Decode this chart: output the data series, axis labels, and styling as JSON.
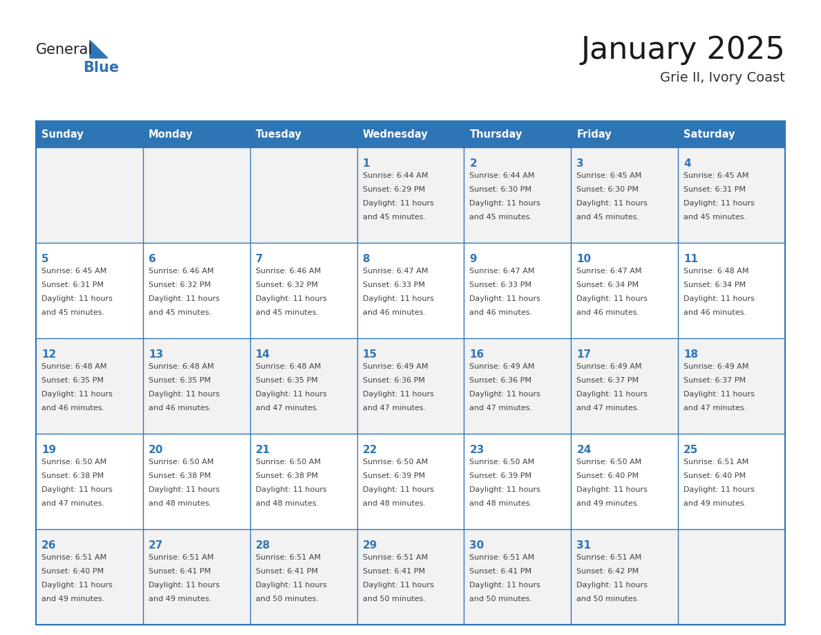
{
  "title": "January 2025",
  "subtitle": "Grie II, Ivory Coast",
  "header_bg": "#2E75B6",
  "header_text_color": "#FFFFFF",
  "cell_bg_even": "#F2F2F2",
  "cell_bg_odd": "#FFFFFF",
  "cell_text_color": "#404040",
  "day_num_color": "#2E75B6",
  "grid_line_color": "#2E75B6",
  "days_of_week": [
    "Sunday",
    "Monday",
    "Tuesday",
    "Wednesday",
    "Thursday",
    "Friday",
    "Saturday"
  ],
  "weeks": [
    [
      {
        "day": "",
        "sunrise": "",
        "sunset": "",
        "daylight": ""
      },
      {
        "day": "",
        "sunrise": "",
        "sunset": "",
        "daylight": ""
      },
      {
        "day": "",
        "sunrise": "",
        "sunset": "",
        "daylight": ""
      },
      {
        "day": "1",
        "sunrise": "Sunrise: 6:44 AM",
        "sunset": "Sunset: 6:29 PM",
        "daylight": "Daylight: 11 hours\nand 45 minutes."
      },
      {
        "day": "2",
        "sunrise": "Sunrise: 6:44 AM",
        "sunset": "Sunset: 6:30 PM",
        "daylight": "Daylight: 11 hours\nand 45 minutes."
      },
      {
        "day": "3",
        "sunrise": "Sunrise: 6:45 AM",
        "sunset": "Sunset: 6:30 PM",
        "daylight": "Daylight: 11 hours\nand 45 minutes."
      },
      {
        "day": "4",
        "sunrise": "Sunrise: 6:45 AM",
        "sunset": "Sunset: 6:31 PM",
        "daylight": "Daylight: 11 hours\nand 45 minutes."
      }
    ],
    [
      {
        "day": "5",
        "sunrise": "Sunrise: 6:45 AM",
        "sunset": "Sunset: 6:31 PM",
        "daylight": "Daylight: 11 hours\nand 45 minutes."
      },
      {
        "day": "6",
        "sunrise": "Sunrise: 6:46 AM",
        "sunset": "Sunset: 6:32 PM",
        "daylight": "Daylight: 11 hours\nand 45 minutes."
      },
      {
        "day": "7",
        "sunrise": "Sunrise: 6:46 AM",
        "sunset": "Sunset: 6:32 PM",
        "daylight": "Daylight: 11 hours\nand 45 minutes."
      },
      {
        "day": "8",
        "sunrise": "Sunrise: 6:47 AM",
        "sunset": "Sunset: 6:33 PM",
        "daylight": "Daylight: 11 hours\nand 46 minutes."
      },
      {
        "day": "9",
        "sunrise": "Sunrise: 6:47 AM",
        "sunset": "Sunset: 6:33 PM",
        "daylight": "Daylight: 11 hours\nand 46 minutes."
      },
      {
        "day": "10",
        "sunrise": "Sunrise: 6:47 AM",
        "sunset": "Sunset: 6:34 PM",
        "daylight": "Daylight: 11 hours\nand 46 minutes."
      },
      {
        "day": "11",
        "sunrise": "Sunrise: 6:48 AM",
        "sunset": "Sunset: 6:34 PM",
        "daylight": "Daylight: 11 hours\nand 46 minutes."
      }
    ],
    [
      {
        "day": "12",
        "sunrise": "Sunrise: 6:48 AM",
        "sunset": "Sunset: 6:35 PM",
        "daylight": "Daylight: 11 hours\nand 46 minutes."
      },
      {
        "day": "13",
        "sunrise": "Sunrise: 6:48 AM",
        "sunset": "Sunset: 6:35 PM",
        "daylight": "Daylight: 11 hours\nand 46 minutes."
      },
      {
        "day": "14",
        "sunrise": "Sunrise: 6:48 AM",
        "sunset": "Sunset: 6:35 PM",
        "daylight": "Daylight: 11 hours\nand 47 minutes."
      },
      {
        "day": "15",
        "sunrise": "Sunrise: 6:49 AM",
        "sunset": "Sunset: 6:36 PM",
        "daylight": "Daylight: 11 hours\nand 47 minutes."
      },
      {
        "day": "16",
        "sunrise": "Sunrise: 6:49 AM",
        "sunset": "Sunset: 6:36 PM",
        "daylight": "Daylight: 11 hours\nand 47 minutes."
      },
      {
        "day": "17",
        "sunrise": "Sunrise: 6:49 AM",
        "sunset": "Sunset: 6:37 PM",
        "daylight": "Daylight: 11 hours\nand 47 minutes."
      },
      {
        "day": "18",
        "sunrise": "Sunrise: 6:49 AM",
        "sunset": "Sunset: 6:37 PM",
        "daylight": "Daylight: 11 hours\nand 47 minutes."
      }
    ],
    [
      {
        "day": "19",
        "sunrise": "Sunrise: 6:50 AM",
        "sunset": "Sunset: 6:38 PM",
        "daylight": "Daylight: 11 hours\nand 47 minutes."
      },
      {
        "day": "20",
        "sunrise": "Sunrise: 6:50 AM",
        "sunset": "Sunset: 6:38 PM",
        "daylight": "Daylight: 11 hours\nand 48 minutes."
      },
      {
        "day": "21",
        "sunrise": "Sunrise: 6:50 AM",
        "sunset": "Sunset: 6:38 PM",
        "daylight": "Daylight: 11 hours\nand 48 minutes."
      },
      {
        "day": "22",
        "sunrise": "Sunrise: 6:50 AM",
        "sunset": "Sunset: 6:39 PM",
        "daylight": "Daylight: 11 hours\nand 48 minutes."
      },
      {
        "day": "23",
        "sunrise": "Sunrise: 6:50 AM",
        "sunset": "Sunset: 6:39 PM",
        "daylight": "Daylight: 11 hours\nand 48 minutes."
      },
      {
        "day": "24",
        "sunrise": "Sunrise: 6:50 AM",
        "sunset": "Sunset: 6:40 PM",
        "daylight": "Daylight: 11 hours\nand 49 minutes."
      },
      {
        "day": "25",
        "sunrise": "Sunrise: 6:51 AM",
        "sunset": "Sunset: 6:40 PM",
        "daylight": "Daylight: 11 hours\nand 49 minutes."
      }
    ],
    [
      {
        "day": "26",
        "sunrise": "Sunrise: 6:51 AM",
        "sunset": "Sunset: 6:40 PM",
        "daylight": "Daylight: 11 hours\nand 49 minutes."
      },
      {
        "day": "27",
        "sunrise": "Sunrise: 6:51 AM",
        "sunset": "Sunset: 6:41 PM",
        "daylight": "Daylight: 11 hours\nand 49 minutes."
      },
      {
        "day": "28",
        "sunrise": "Sunrise: 6:51 AM",
        "sunset": "Sunset: 6:41 PM",
        "daylight": "Daylight: 11 hours\nand 50 minutes."
      },
      {
        "day": "29",
        "sunrise": "Sunrise: 6:51 AM",
        "sunset": "Sunset: 6:41 PM",
        "daylight": "Daylight: 11 hours\nand 50 minutes."
      },
      {
        "day": "30",
        "sunrise": "Sunrise: 6:51 AM",
        "sunset": "Sunset: 6:41 PM",
        "daylight": "Daylight: 11 hours\nand 50 minutes."
      },
      {
        "day": "31",
        "sunrise": "Sunrise: 6:51 AM",
        "sunset": "Sunset: 6:42 PM",
        "daylight": "Daylight: 11 hours\nand 50 minutes."
      },
      {
        "day": "",
        "sunrise": "",
        "sunset": "",
        "daylight": ""
      }
    ]
  ]
}
